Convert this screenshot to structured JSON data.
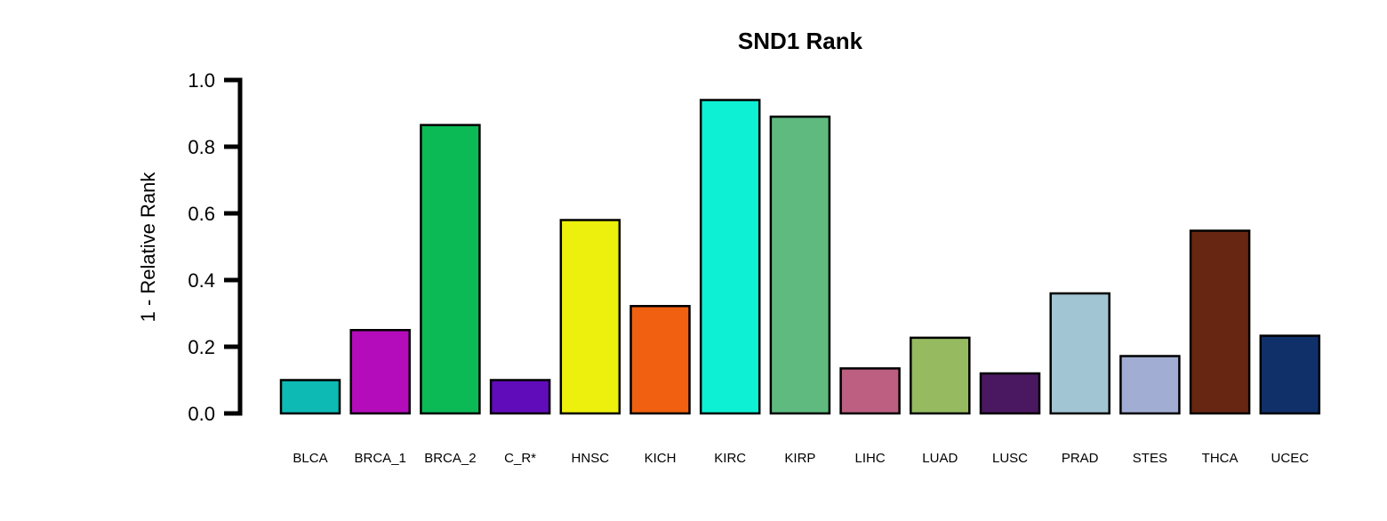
{
  "chart_data": {
    "type": "bar",
    "title": "SND1 Rank",
    "xlabel": "",
    "ylabel": "1 - Relative Rank",
    "ylim": [
      0,
      1
    ],
    "yticks": [
      "0.0",
      "0.2",
      "0.4",
      "0.6",
      "0.8",
      "1.0"
    ],
    "grid": false,
    "categories": [
      "BLCA",
      "BRCA_1",
      "BRCA_2",
      "C_R*",
      "HNSC",
      "KICH",
      "KIRC",
      "KIRP",
      "LIHC",
      "LUAD",
      "LUSC",
      "PRAD",
      "STES",
      "THCA",
      "UCEC"
    ],
    "values": [
      0.1,
      0.25,
      0.865,
      0.1,
      0.58,
      0.322,
      0.94,
      0.89,
      0.135,
      0.227,
      0.12,
      0.36,
      0.172,
      0.548,
      0.233
    ],
    "colors": [
      "#0DBAB4",
      "#B40CBA",
      "#0BBA55",
      "#610CBA",
      "#EDEF0C",
      "#F06010",
      "#0EF0D4",
      "#5FBA80",
      "#BC5F80",
      "#95BA60",
      "#4A1860",
      "#A2C5D4",
      "#A2ADD3",
      "#672612",
      "#10306A"
    ]
  }
}
